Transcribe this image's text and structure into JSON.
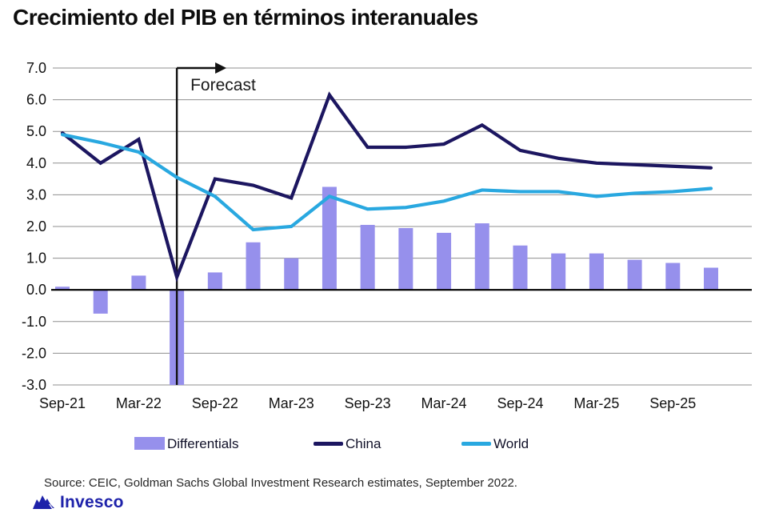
{
  "title": "Crecimiento del PIB en términos interanuales",
  "annotations": {
    "forecast_label": "Forecast"
  },
  "legend": {
    "differentials_label": "Differentials",
    "china_label": "China",
    "world_label": "World"
  },
  "source_note": "Source: CEIC, Goldman Sachs Global Investment Research estimates, September 2022.",
  "logo_text": "Invesco",
  "colors": {
    "bars": "#9690EC",
    "china_line": "#1C1660",
    "world_line": "#29A8E0",
    "gridline": "#8F8F8F",
    "axis_zero": "#000000",
    "forecast": "#111111",
    "tick_text": "#111111",
    "logo": "#1E22AA"
  },
  "chart_data": {
    "type": "bar+line",
    "title": "Crecimiento del PIB en términos interanuales",
    "xlabel": "",
    "ylabel": "",
    "ylim": [
      -3.0,
      7.0
    ],
    "grid": true,
    "legend_position": "bottom",
    "categories": [
      "Sep-21",
      "Dec-21",
      "Mar-22",
      "Jun-22",
      "Sep-22",
      "Dec-22",
      "Mar-23",
      "Jun-23",
      "Sep-23",
      "Dec-23",
      "Mar-24",
      "Jun-24",
      "Sep-24",
      "Dec-24",
      "Mar-25",
      "Jun-25",
      "Sep-25",
      "Dec-25"
    ],
    "x_tick_labels": [
      "Sep-21",
      "Mar-22",
      "Sep-22",
      "Mar-23",
      "Sep-23",
      "Mar-24",
      "Sep-24",
      "Mar-25",
      "Sep-25"
    ],
    "y_tick_labels": [
      "7.0",
      "6.0",
      "5.0",
      "4.0",
      "3.0",
      "2.0",
      "1.0",
      "0.0",
      "-1.0",
      "-2.0",
      "-3.0"
    ],
    "forecast_start_index": 3,
    "series": [
      {
        "name": "Differentials",
        "type": "bar",
        "values": [
          0.1,
          -0.75,
          0.45,
          -3.0,
          0.55,
          1.5,
          1.0,
          3.25,
          2.05,
          1.95,
          1.8,
          2.1,
          1.4,
          1.15,
          1.15,
          0.95,
          0.85,
          0.7
        ]
      },
      {
        "name": "China",
        "type": "line",
        "values": [
          4.95,
          4.0,
          4.75,
          0.4,
          3.5,
          3.3,
          2.9,
          6.15,
          4.5,
          4.5,
          4.6,
          5.2,
          4.4,
          4.15,
          4.0,
          3.95,
          3.9,
          3.85
        ]
      },
      {
        "name": "World",
        "type": "line",
        "values": [
          4.9,
          4.65,
          4.35,
          3.55,
          2.95,
          1.9,
          2.0,
          2.95,
          2.55,
          2.6,
          2.8,
          3.15,
          3.1,
          3.1,
          2.95,
          3.05,
          3.1,
          3.2
        ]
      }
    ]
  }
}
